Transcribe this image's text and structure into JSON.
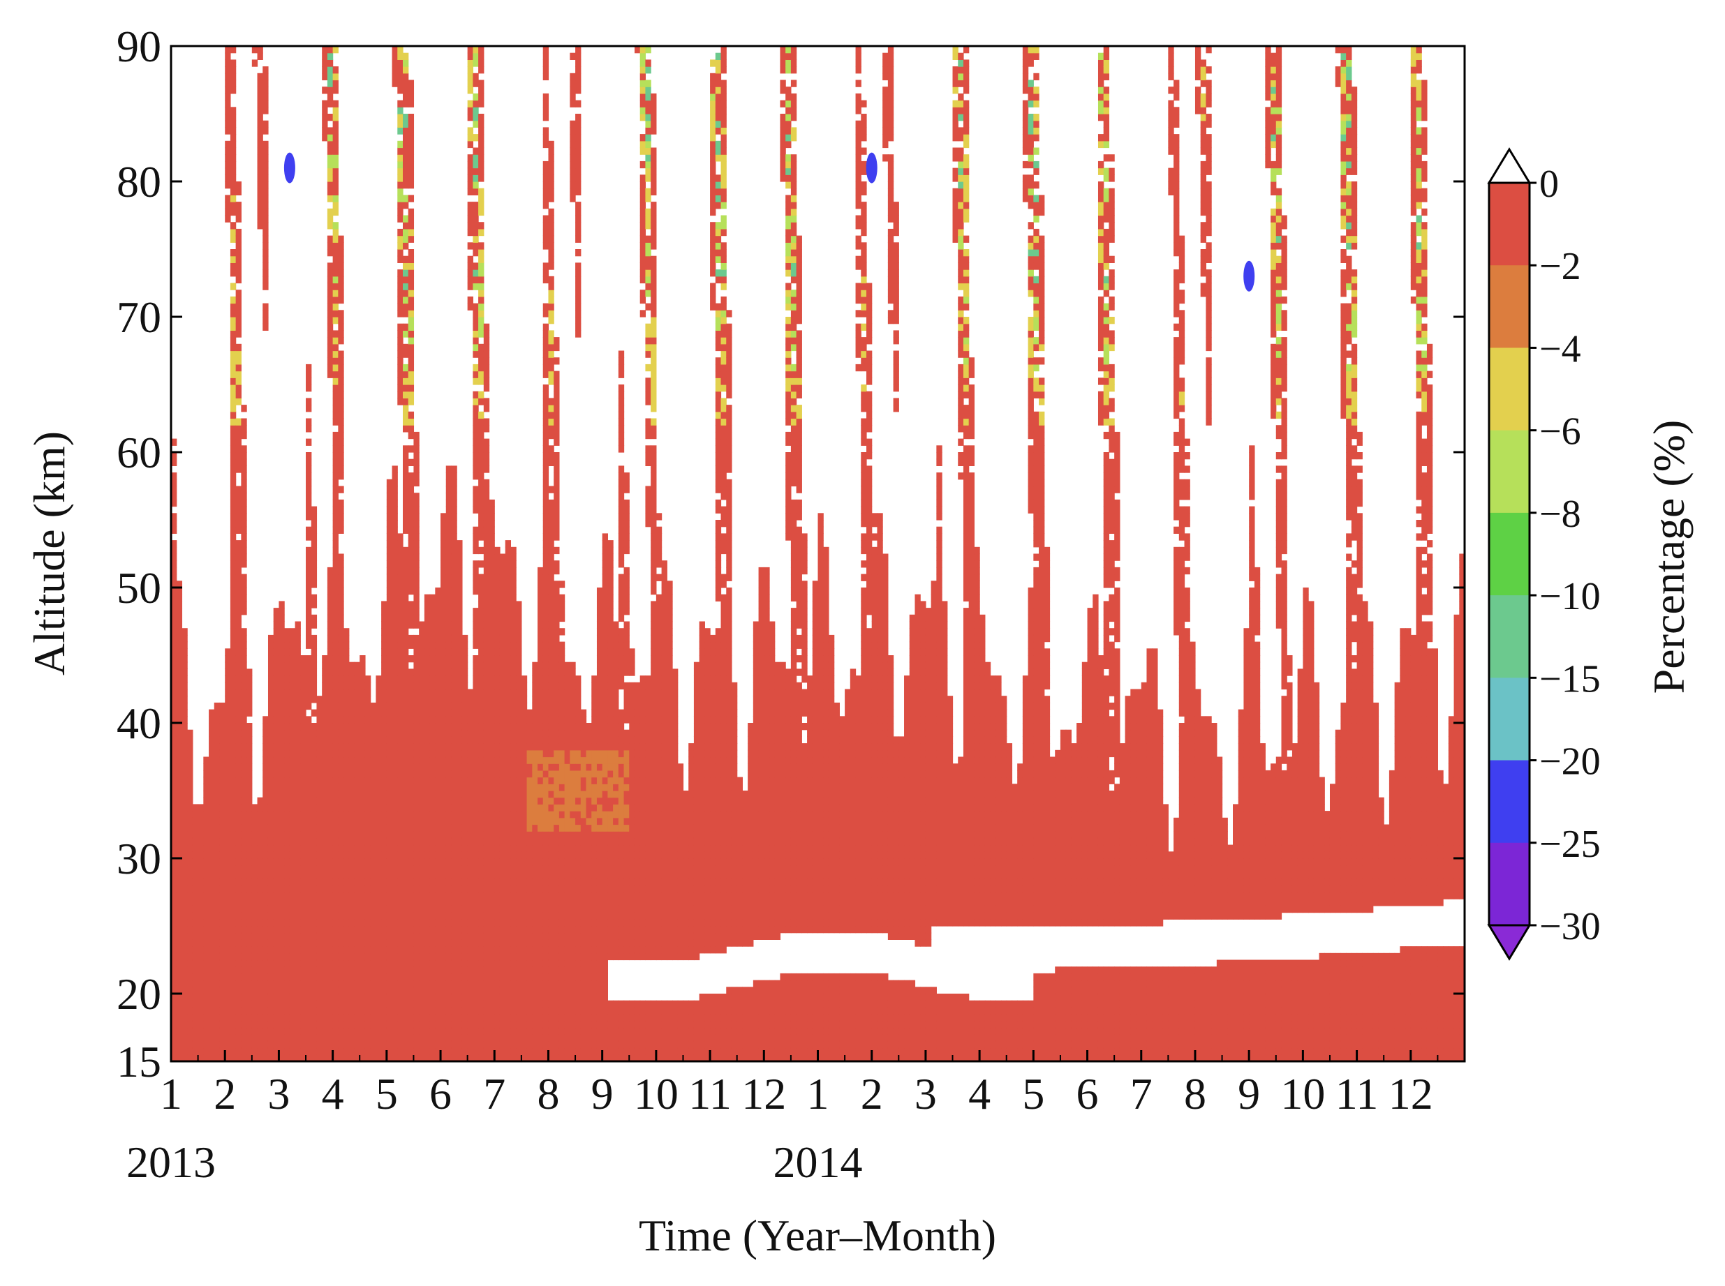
{
  "chart_data": {
    "type": "heatmap",
    "title": "",
    "xlabel": "Time (Year–Month)",
    "ylabel": "Altitude (km)",
    "colorbar_label": "Percentage (%)",
    "ylim": [
      15,
      90
    ],
    "y_ticks": [
      15,
      20,
      30,
      40,
      50,
      60,
      70,
      80,
      90
    ],
    "x_tick_labels": [
      "1",
      "2",
      "3",
      "4",
      "5",
      "6",
      "7",
      "8",
      "9",
      "10",
      "11",
      "12",
      "1",
      "2",
      "3",
      "4",
      "5",
      "6",
      "7",
      "8",
      "9",
      "10",
      "11",
      "12"
    ],
    "year_labels": [
      {
        "label": "2013",
        "month_index": 0
      },
      {
        "label": "2014",
        "month_index": 12
      }
    ],
    "x_minor_ticks_per_month": 1,
    "colorbar": {
      "levels": [
        0,
        -2,
        -4,
        -6,
        -8,
        -10,
        -15,
        -20,
        -25,
        -30
      ],
      "colors": [
        "#dc4e42",
        "#dc7d3e",
        "#e3d04e",
        "#b6e05a",
        "#5ed145",
        "#6cc98e",
        "#6bc2c6",
        "#3f3ff0",
        "#7c26d6"
      ],
      "extend": "both",
      "extend_colors": {
        "max": "#ffffff",
        "min": "#8a2ad6"
      }
    },
    "field_summary": [
      {
        "region": "15–30 km, full period",
        "dominant_level": "0 to -2",
        "note": "continuous red band, white gaps near 20–28 km"
      },
      {
        "region": "30–45 km, 2013-08 to 2014-09",
        "dominant_level": "0 to -2",
        "note": "broad red plateau; patch of -2 to -4 near 2013-08 at 33–38 km"
      },
      {
        "region": "45–90 km",
        "dominant_level": "mostly above 0 (white)",
        "note": "vertical red plumes with yellow/green/cyan cores"
      },
      {
        "region": "81 km, 2013-03 and 2014-02",
        "dominant_level": "-20 to -25",
        "note": "isolated blue cores"
      },
      {
        "region": "73 km, 2014-09",
        "dominant_level": "-20 to -25",
        "note": "isolated blue core"
      }
    ],
    "grid": false,
    "legend": "colorbar-right"
  }
}
